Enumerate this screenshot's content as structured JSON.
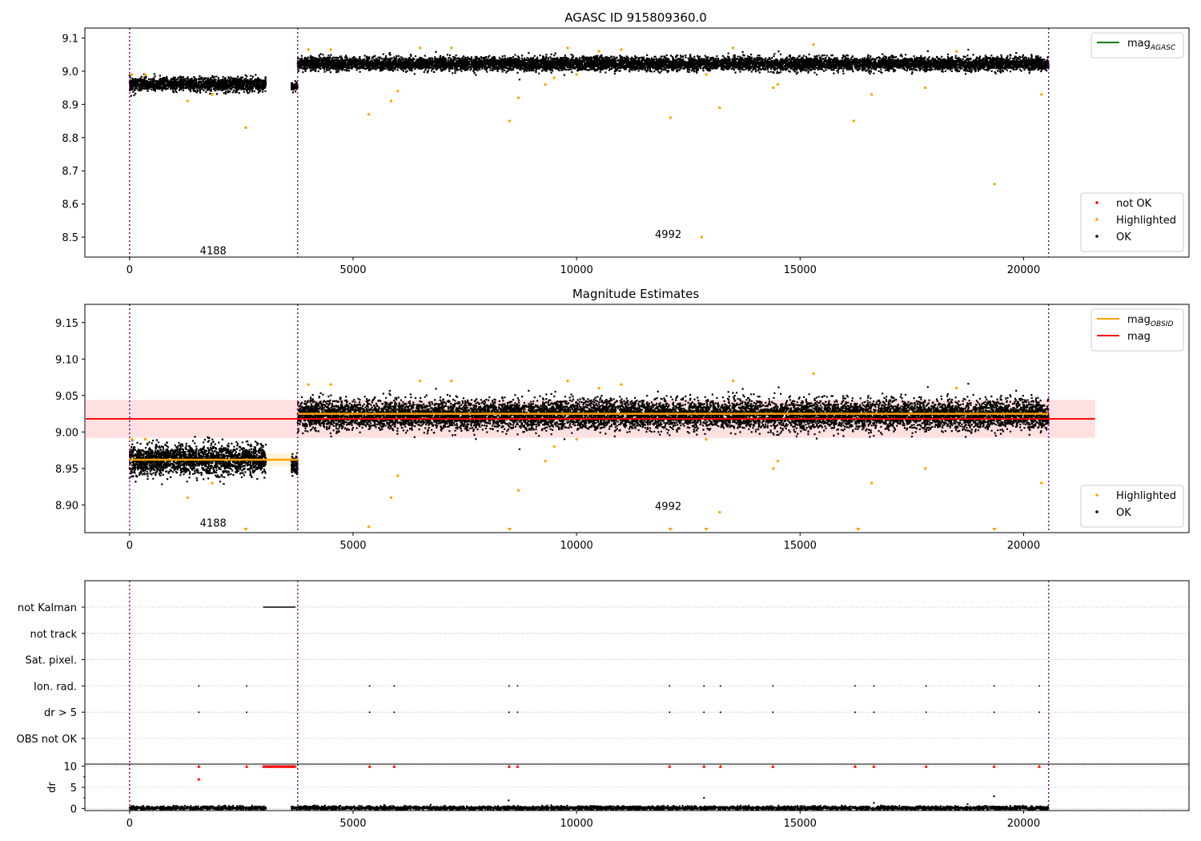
{
  "chart_data": [
    {
      "type": "scatter",
      "title": "AGASC ID 915809360.0",
      "xlim": [
        -1000,
        23700
      ],
      "ylim": [
        8.44,
        9.13
      ],
      "xticks": [
        0,
        5000,
        10000,
        15000,
        20000
      ],
      "xtick_labels": [
        "0",
        "5000",
        "10000",
        "15000",
        "20000"
      ],
      "yticks": [
        8.5,
        8.6,
        8.7,
        8.8,
        8.9,
        9.0,
        9.1
      ],
      "ytick_labels": [
        "8.5",
        "8.6",
        "8.7",
        "8.8",
        "8.9",
        "9.0",
        "9.1"
      ],
      "vlines": [
        0,
        3760,
        20560
      ],
      "annotations": [
        {
          "text": "4188",
          "x": 1870,
          "y": 8.46
        },
        {
          "text": "4992",
          "x": 12050,
          "y": 8.51
        }
      ],
      "legends": [
        {
          "placement": "upper-right",
          "entries": [
            {
              "label": "mag",
              "sub": "AGASC",
              "color": "#008000",
              "kind": "line"
            }
          ]
        },
        {
          "placement": "lower-right",
          "entries": [
            {
              "label": "not OK",
              "color": "#ff0000",
              "kind": "dot"
            },
            {
              "label": "Highlighted",
              "color": "#ffa500",
              "kind": "dot"
            },
            {
              "label": "OK",
              "color": "#000000",
              "kind": "dot"
            }
          ]
        }
      ],
      "series": [
        {
          "name": "OK",
          "color": "#000000",
          "segments": [
            {
              "x": [
                0,
                3050
              ],
              "center": 8.963,
              "spread": 0.018
            },
            {
              "x": [
                3620,
                3760
              ],
              "center": 8.955,
              "spread": 0.012
            },
            {
              "x": [
                3760,
                20560
              ],
              "center": 9.025,
              "spread": 0.018
            }
          ]
        },
        {
          "name": "Highlighted",
          "color": "#ffa500",
          "x": [
            50,
            350,
            1300,
            1850,
            2600,
            5350,
            5850,
            6000,
            8500,
            8700,
            9300,
            9500,
            10000,
            12100,
            12800,
            12900,
            13200,
            14400,
            14500,
            16200,
            16600,
            17800,
            19350,
            20400,
            4000,
            7200,
            9800,
            11000,
            15300,
            13500,
            18500,
            4500,
            6500,
            10500
          ],
          "y": [
            8.99,
            8.99,
            8.91,
            8.93,
            8.83,
            8.87,
            8.91,
            8.94,
            8.85,
            8.92,
            8.96,
            8.98,
            8.99,
            8.86,
            8.5,
            8.99,
            8.89,
            8.95,
            8.96,
            8.85,
            8.93,
            8.95,
            8.66,
            8.93,
            9.065,
            9.07,
            9.07,
            9.065,
            9.08,
            9.07,
            9.06,
            9.065,
            9.07,
            9.06
          ]
        }
      ]
    },
    {
      "type": "scatter",
      "title": "Magnitude Estimates",
      "xlim": [
        -1000,
        23700
      ],
      "ylim": [
        8.862,
        9.175
      ],
      "xticks": [
        0,
        5000,
        10000,
        15000,
        20000
      ],
      "xtick_labels": [
        "0",
        "5000",
        "10000",
        "15000",
        "20000"
      ],
      "yticks": [
        8.9,
        8.95,
        9.0,
        9.05,
        9.1,
        9.15
      ],
      "ytick_labels": [
        "8.90",
        "8.95",
        "9.00",
        "9.05",
        "9.10",
        "9.15"
      ],
      "vlines": [
        0,
        3760,
        20560
      ],
      "mag": {
        "value": 9.018,
        "band": [
          8.992,
          9.044
        ],
        "x": [
          -1000,
          21600
        ],
        "color": "#ff0000"
      },
      "mag_obsid": [
        {
          "x": [
            0,
            3760
          ],
          "value": 8.962,
          "band": [
            8.953,
            8.971
          ]
        },
        {
          "x": [
            3760,
            20560
          ],
          "value": 9.025,
          "band": [
            9.018,
            9.032
          ]
        }
      ],
      "annotations": [
        {
          "text": "4188",
          "x": 1870,
          "y": 8.876
        },
        {
          "text": "4992",
          "x": 12050,
          "y": 8.899
        }
      ],
      "legends": [
        {
          "placement": "upper-right",
          "entries": [
            {
              "label": "mag",
              "sub": "OBSID",
              "color": "#ffa500",
              "kind": "line"
            },
            {
              "label": "mag",
              "color": "#ff0000",
              "kind": "line"
            }
          ]
        },
        {
          "placement": "lower-right",
          "entries": [
            {
              "label": "Highlighted",
              "color": "#ffa500",
              "kind": "dot"
            },
            {
              "label": "OK",
              "color": "#000000",
              "kind": "dot"
            }
          ]
        }
      ],
      "offscale_markers_x": [
        2600,
        8500,
        12100,
        12900,
        16300,
        19350
      ]
    },
    {
      "type": "scatter",
      "xlim": [
        -1000,
        23700
      ],
      "xticks": [
        0,
        5000,
        10000,
        15000,
        20000
      ],
      "xtick_labels": [
        "0",
        "5000",
        "10000",
        "15000",
        "20000"
      ],
      "flag_rows": [
        "not Kalman",
        "not track",
        "Sat. pixel.",
        "Ion. rad.",
        "dr > 5",
        "OBS not OK"
      ],
      "flag_points": {
        "not Kalman": {
          "range": [
            3000,
            3700
          ]
        },
        "Ion. rad.": [
          1550,
          2620,
          5370,
          5920,
          8490,
          8680,
          12080,
          12850,
          13220,
          14390,
          16230,
          16650,
          17820,
          19340,
          20350
        ],
        "dr > 5": [
          1550,
          2620,
          5370,
          5920,
          8490,
          8680,
          12080,
          12850,
          13220,
          14390,
          16230,
          16650,
          17820,
          19340,
          20350
        ]
      },
      "dr": {
        "ylabel": "dr",
        "ylim": [
          -0.5,
          10.5
        ],
        "yticks": [
          0,
          5,
          10
        ],
        "ytick_labels": [
          "0",
          "5",
          "10"
        ],
        "clipped_x": [
          1550,
          2620,
          5370,
          5920,
          8490,
          8680,
          12080,
          12850,
          13220,
          14390,
          16230,
          16650,
          17820,
          19340,
          20350
        ],
        "clipped_range": [
          3000,
          3700
        ],
        "extra_red": {
          "x": 1550,
          "y": 7.0
        },
        "outliers": [
          {
            "x": 8480,
            "y": 1.9
          },
          {
            "x": 12850,
            "y": 2.5
          },
          {
            "x": 19340,
            "y": 2.9
          },
          {
            "x": 16650,
            "y": 1.3
          }
        ]
      },
      "vlines": [
        0,
        3760,
        20560
      ]
    }
  ]
}
